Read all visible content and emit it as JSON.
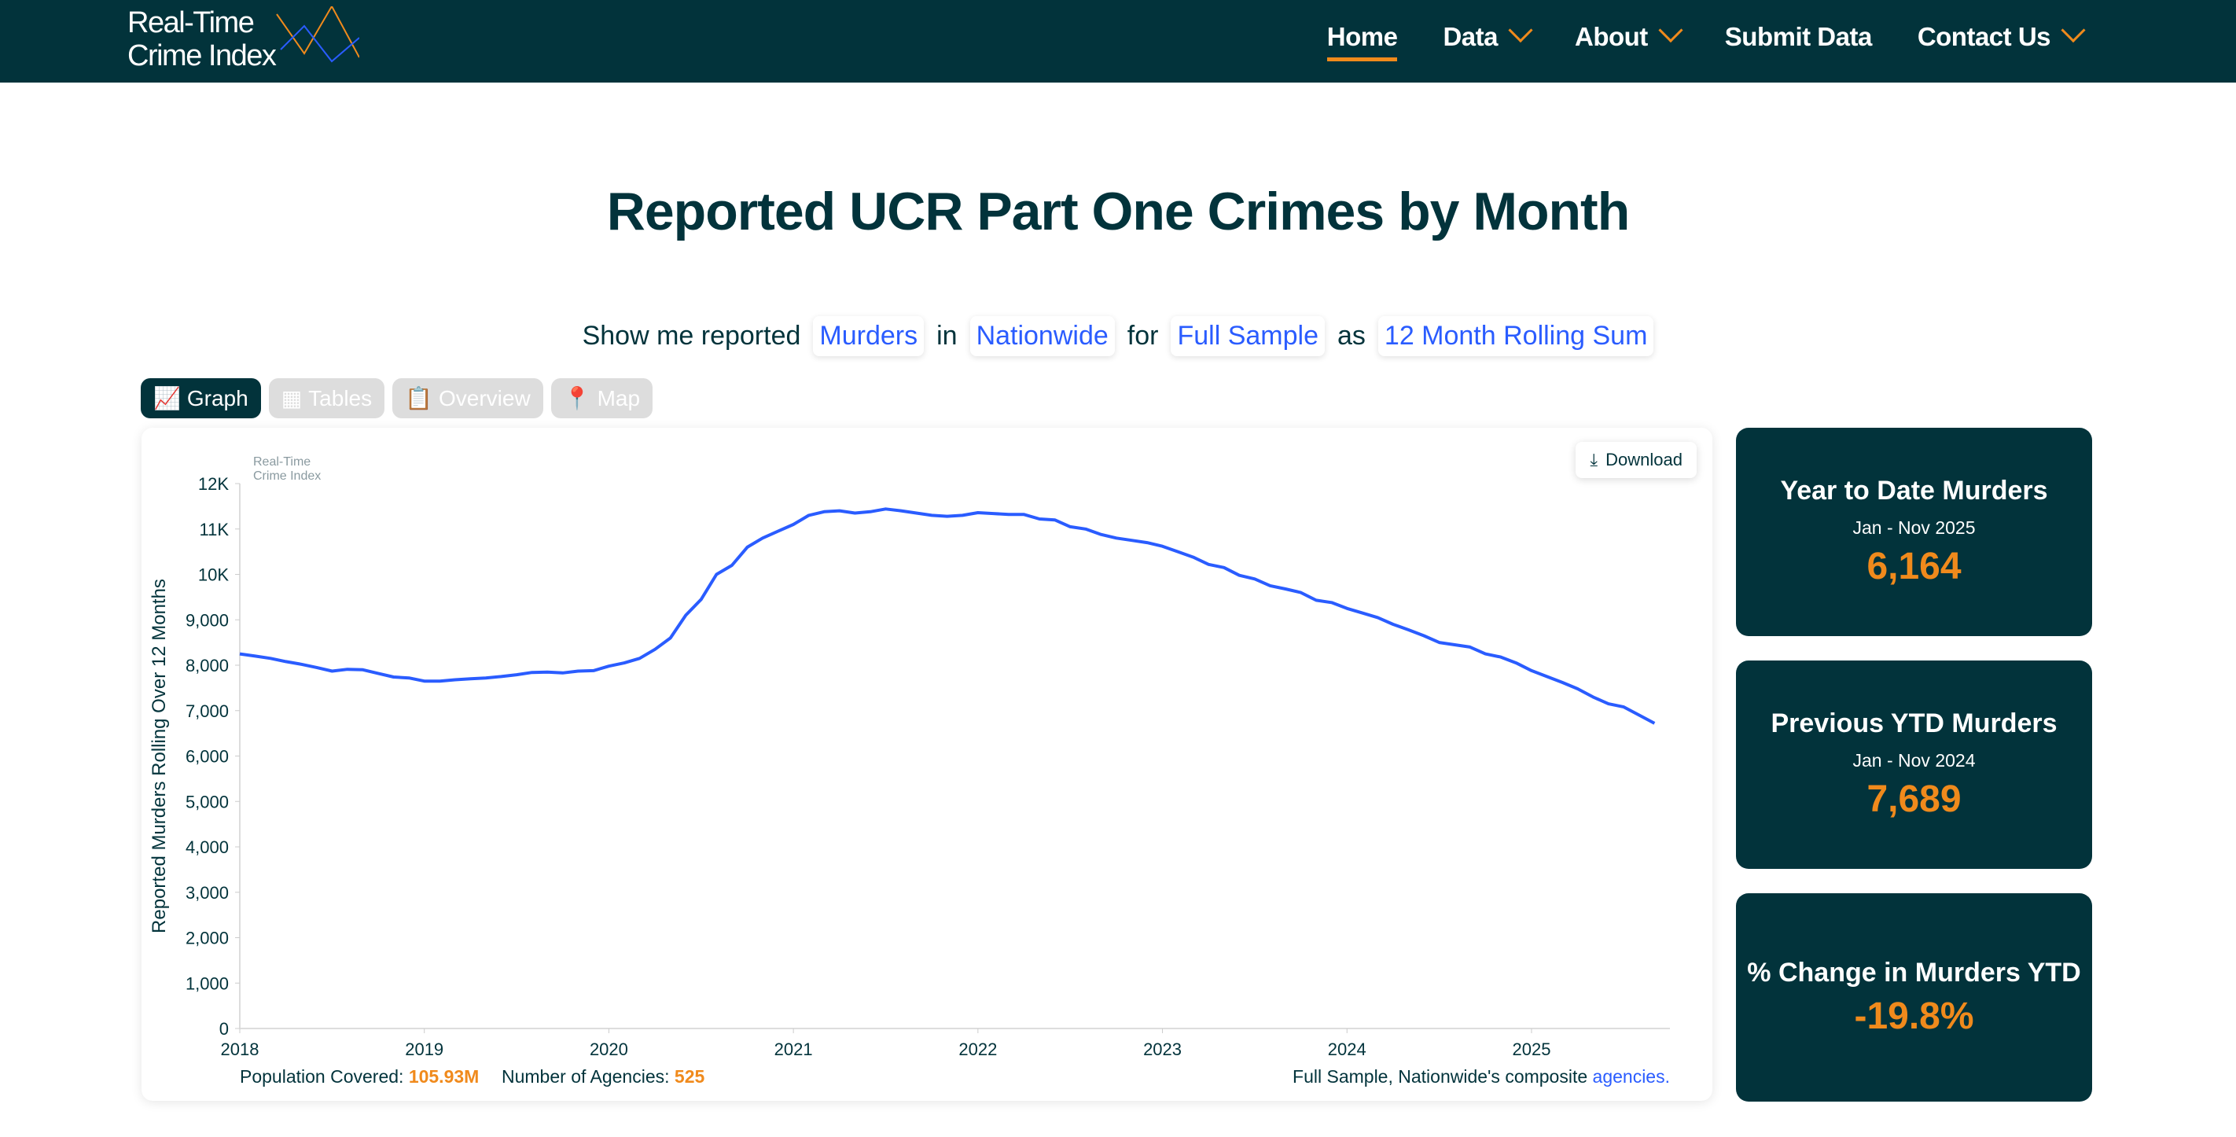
{
  "header": {
    "logo_line1": "Real-Time",
    "logo_line2": "Crime Index",
    "nav": [
      {
        "label": "Home",
        "active": true,
        "dropdown": false
      },
      {
        "label": "Data",
        "dropdown": true
      },
      {
        "label": "About",
        "dropdown": true
      },
      {
        "label": "Submit Data",
        "dropdown": false
      },
      {
        "label": "Contact Us",
        "dropdown": true
      }
    ]
  },
  "page_title": "Reported UCR Part One Crimes by Month",
  "filter": {
    "prefix": "Show me reported",
    "crime": "Murders",
    "w_in": "in",
    "region": "Nationwide",
    "w_for": "for",
    "sample": "Full Sample",
    "w_as": "as",
    "measure": "12 Month Rolling Sum"
  },
  "tabs": [
    {
      "label": "Graph",
      "icon": "line-chart-icon",
      "active": true
    },
    {
      "label": "Tables",
      "icon": "table-icon"
    },
    {
      "label": "Overview",
      "icon": "clipboard-icon"
    },
    {
      "label": "Map",
      "icon": "map-pin-icon"
    }
  ],
  "chart": {
    "download_label": "Download",
    "watermark_line1": "Real-Time",
    "watermark_line2": "Crime Index",
    "population_label": "Population Covered:",
    "population_value": "105.93M",
    "agencies_label": "Number of Agencies:",
    "agencies_value": "525",
    "note_text": "Full Sample, Nationwide's composite",
    "note_link": "agencies."
  },
  "chart_data": {
    "type": "line",
    "ylabel": "Reported Murders Rolling Over 12 Months",
    "ylim": [
      0,
      12000
    ],
    "yticks": [
      "0",
      "1,000",
      "2,000",
      "3,000",
      "4,000",
      "5,000",
      "6,000",
      "7,000",
      "8,000",
      "9,000",
      "10K",
      "11K",
      "12K"
    ],
    "xticks": [
      "2018",
      "2019",
      "2020",
      "2021",
      "2022",
      "2023",
      "2024",
      "2025"
    ],
    "xlim": [
      "2018-01",
      "2025-10"
    ],
    "grid": false,
    "color": "#2a5cff",
    "x_start": "2018-01",
    "values": [
      8250,
      8200,
      8150,
      8080,
      8020,
      7950,
      7870,
      7910,
      7900,
      7820,
      7740,
      7720,
      7650,
      7650,
      7680,
      7700,
      7720,
      7750,
      7790,
      7840,
      7850,
      7830,
      7870,
      7880,
      7980,
      8050,
      8150,
      8350,
      8600,
      9100,
      9450,
      10000,
      10200,
      10600,
      10800,
      10950,
      11100,
      11300,
      11380,
      11400,
      11350,
      11380,
      11440,
      11400,
      11350,
      11300,
      11280,
      11300,
      11360,
      11340,
      11320,
      11320,
      11220,
      11200,
      11050,
      11000,
      10880,
      10800,
      10750,
      10700,
      10620,
      10500,
      10380,
      10220,
      10150,
      9980,
      9900,
      9750,
      9680,
      9600,
      9430,
      9380,
      9250,
      9150,
      9050,
      8900,
      8780,
      8650,
      8500,
      8450,
      8400,
      8250,
      8180,
      8050,
      7880,
      7750,
      7620,
      7480,
      7300,
      7150,
      7080,
      6900,
      6720
    ]
  },
  "stats": [
    {
      "title": "Year to Date Murders",
      "period": "Jan - Nov 2025",
      "value": "6,164"
    },
    {
      "title": "Previous YTD Murders",
      "period": "Jan - Nov 2024",
      "value": "7,689"
    },
    {
      "title": "% Change in Murders YTD",
      "period": "",
      "value": "-19.8%"
    }
  ],
  "colors": {
    "brand": "#02333b",
    "accent": "#f08a1c",
    "link": "#2a5cff"
  }
}
